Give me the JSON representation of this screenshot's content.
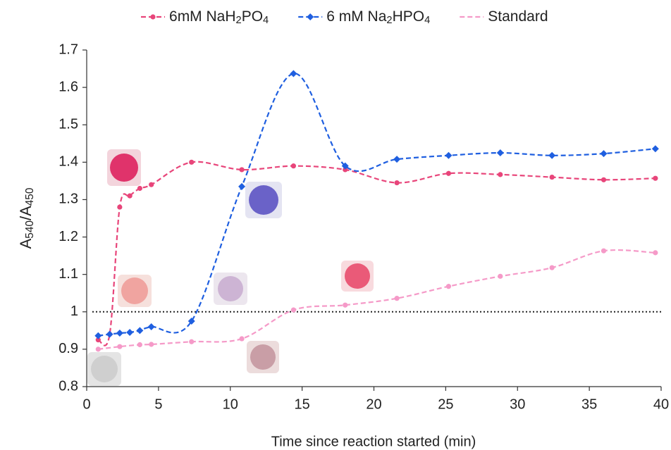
{
  "chart_data": {
    "type": "line",
    "x_label": "Time since reaction started (min)",
    "y_label": "A540/A450",
    "xlim": [
      0,
      40
    ],
    "xticks": [
      0,
      5,
      10,
      15,
      20,
      25,
      30,
      35,
      40
    ],
    "ylim": [
      0.8,
      1.7
    ],
    "yticks": [
      0.8,
      0.9,
      1,
      1.1,
      1.2,
      1.3,
      1.4,
      1.5,
      1.6,
      1.7
    ],
    "reference_line": 1,
    "legend": "top",
    "series": [
      {
        "name": "6mM NaH2PO4",
        "color": "#e8457a",
        "marker": "circle",
        "x": [
          0.8,
          1.6,
          2.3,
          3,
          3.7,
          4.5,
          7.3,
          10.8,
          14.4,
          18,
          21.6,
          25.2,
          28.8,
          32.4,
          36,
          39.6
        ],
        "values": [
          0.925,
          0.94,
          1.28,
          1.31,
          1.33,
          1.34,
          1.4,
          1.38,
          1.39,
          1.38,
          1.345,
          1.37,
          1.367,
          1.36,
          1.353,
          1.357
        ]
      },
      {
        "name": "6 mM Na2HPO4",
        "color": "#1f5fe0",
        "marker": "diamond",
        "x": [
          0.8,
          1.6,
          2.3,
          3,
          3.7,
          4.5,
          7.3,
          10.8,
          14.4,
          18,
          21.6,
          25.2,
          28.8,
          32.4,
          36,
          39.6
        ],
        "values": [
          0.936,
          0.94,
          0.943,
          0.945,
          0.95,
          0.96,
          0.975,
          1.335,
          1.637,
          1.39,
          1.408,
          1.418,
          1.425,
          1.418,
          1.423,
          1.436
        ]
      },
      {
        "name": "Standard",
        "color": "#f59ac8",
        "marker": "circle",
        "x": [
          0.8,
          2.3,
          3.7,
          4.5,
          7.3,
          10.8,
          14.4,
          18,
          21.6,
          25.2,
          28.8,
          32.4,
          36,
          39.6
        ],
        "values": [
          0.9,
          0.907,
          0.912,
          0.913,
          0.92,
          0.928,
          1.005,
          1.018,
          1.036,
          1.068,
          1.095,
          1.118,
          1.163,
          1.158
        ]
      }
    ]
  }
}
